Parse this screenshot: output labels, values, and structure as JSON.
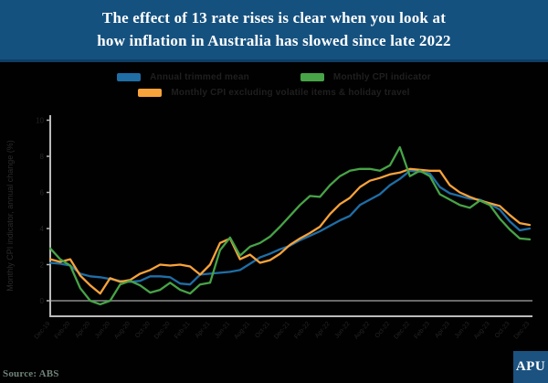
{
  "header": {
    "title_line1": "The effect of 13 rate rises is clear when you look at",
    "title_line2": "how inflation in Australia has slowed since late 2022"
  },
  "legend": {
    "items": [
      {
        "label": "Annual trimmed mean",
        "color": "#1f6ea6"
      },
      {
        "label": "Monthly CPI indicator",
        "color": "#47a447"
      },
      {
        "label": "Monthly CPI excluding volatile items & holiday travel",
        "color": "#f8a33b"
      }
    ]
  },
  "chart_data": {
    "type": "line",
    "title": "",
    "xlabel": "",
    "ylabel": "Monthly CPI indicator, annual change (%)",
    "ylim": [
      0,
      10
    ],
    "y_ticks": [
      0,
      2,
      4,
      6,
      8,
      10
    ],
    "grid": false,
    "zero_line": true,
    "legend_position": "top",
    "x_tick_labels": [
      "Dec-19",
      "Feb-20",
      "Apr-20",
      "Jun-20",
      "Aug-20",
      "Oct-20",
      "Dec-20",
      "Feb-21",
      "Apr-21",
      "Jun-21",
      "Aug-21",
      "Oct-21",
      "Dec-21",
      "Feb-22",
      "Apr-22",
      "Jun-22",
      "Aug-22",
      "Oct-22",
      "Dec-22",
      "Feb-23",
      "Apr-23",
      "Jun-23",
      "Aug-23",
      "Oct-23",
      "Dec-23"
    ],
    "series": [
      {
        "name": "Annual trimmed mean",
        "color": "#1f6ea6",
        "values": [
          2.1,
          2.05,
          1.95,
          1.5,
          1.35,
          1.3,
          1.2,
          1.1,
          1.05,
          1.1,
          1.35,
          1.35,
          1.3,
          0.95,
          0.9,
          1.45,
          1.5,
          1.55,
          1.6,
          1.7,
          2.05,
          2.4,
          2.6,
          2.85,
          3.05,
          3.35,
          3.6,
          3.85,
          4.15,
          4.45,
          4.7,
          5.3,
          5.6,
          5.9,
          6.4,
          6.75,
          7.2,
          7.15,
          7.05,
          6.3,
          5.95,
          5.8,
          5.65,
          5.6,
          5.35,
          5.05,
          4.4,
          3.9,
          4.0
        ]
      },
      {
        "name": "Monthly CPI excluding volatile items & holiday travel",
        "color": "#f8a33b",
        "values": [
          2.3,
          2.15,
          2.3,
          1.4,
          0.85,
          0.4,
          1.25,
          1.05,
          1.15,
          1.5,
          1.7,
          2.0,
          1.95,
          2.0,
          1.9,
          1.45,
          2.0,
          3.2,
          3.45,
          2.3,
          2.55,
          2.1,
          2.25,
          2.6,
          3.1,
          3.45,
          3.75,
          4.1,
          4.8,
          5.35,
          5.7,
          6.3,
          6.65,
          6.8,
          7.0,
          7.1,
          7.3,
          7.25,
          7.2,
          7.2,
          6.4,
          6.0,
          5.75,
          5.55,
          5.4,
          5.25,
          4.75,
          4.3,
          4.2
        ]
      },
      {
        "name": "Monthly CPI indicator",
        "color": "#47a447",
        "values": [
          2.9,
          2.3,
          1.95,
          0.7,
          0.0,
          -0.2,
          0.0,
          0.9,
          1.1,
          0.85,
          0.45,
          0.6,
          1.0,
          0.6,
          0.4,
          0.9,
          1.0,
          2.8,
          3.5,
          2.5,
          3.0,
          3.2,
          3.55,
          4.1,
          4.7,
          5.3,
          5.8,
          5.75,
          6.4,
          6.9,
          7.2,
          7.3,
          7.3,
          7.2,
          7.5,
          8.5,
          6.9,
          7.2,
          6.9,
          5.9,
          5.6,
          5.3,
          5.15,
          5.55,
          5.3,
          4.55,
          3.95,
          3.45,
          3.4
        ]
      }
    ]
  },
  "footer": {
    "source": "Source: ABS",
    "logo": "APU"
  },
  "colors": {
    "header_bg": "#15517f",
    "chart_bg": "#010101",
    "axis": "#bbbbbb",
    "zero_line": "#8c8c8c",
    "tick_text": "#242424",
    "legend_text": "#1f1f1f",
    "source_text": "#70837a",
    "logo_bg": "#1b527f"
  }
}
